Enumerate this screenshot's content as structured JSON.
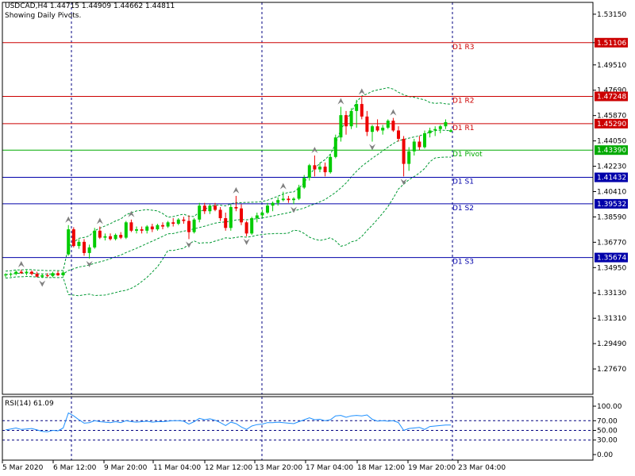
{
  "header": {
    "symbol_line": "USDCAD,H4  1.44715 1.44909 1.44662 1.44811",
    "subtitle": "Showing Daily Pivots."
  },
  "rsi_label": "RSI(14) 61.09",
  "colors": {
    "bull": "#00cc00",
    "bear": "#ee0000",
    "resistance": "#cc0000",
    "support": "#0000aa",
    "pivot": "#00aa00",
    "band": "#009933",
    "rsi_line": "#1e90ff",
    "fractal": "#808080",
    "frame": "#000000"
  },
  "chart_data": [
    {
      "type": "candlestick",
      "title": "USDCAD,H4  1.44715 1.44909 1.44662 1.44811",
      "ylim": [
        1.2585,
        1.54
      ],
      "y_ticks": [
        1.5315,
        1.51106,
        1.4951,
        1.4769,
        1.4587,
        1.4405,
        1.4223,
        1.4041,
        1.3859,
        1.3677,
        1.3495,
        1.3313,
        1.3131,
        1.2949,
        1.2767
      ],
      "x_tick_labels": [
        "5 Mar 2020",
        "6 Mar 12:00",
        "9 Mar 20:00",
        "11 Mar 04:00",
        "12 Mar 12:00",
        "13 Mar 20:00",
        "17 Mar 04:00",
        "18 Mar 12:00",
        "19 Mar 20:00",
        "23 Mar 04:00"
      ],
      "pivots": [
        {
          "name": "D1 R3",
          "value": 1.51106,
          "label": "1.51106",
          "kind": "resistance"
        },
        {
          "name": "D1 R2",
          "value": 1.47248,
          "label": "1.47248",
          "kind": "resistance"
        },
        {
          "name": "D1 R1",
          "value": 1.4529,
          "label": "1.45290",
          "kind": "resistance"
        },
        {
          "name": "D1 Pivot",
          "value": 1.4339,
          "label": "1.43390",
          "kind": "pivot"
        },
        {
          "name": "D1 S1",
          "value": 1.41432,
          "label": "1.41432",
          "kind": "support"
        },
        {
          "name": "D1 S2",
          "value": 1.39532,
          "label": "1.39532",
          "kind": "support"
        },
        {
          "name": "D1 S3",
          "value": 1.35674,
          "label": "1.35674",
          "kind": "support"
        }
      ],
      "candles": [
        [
          1.344,
          1.3455,
          1.3425,
          1.3445
        ],
        [
          1.3445,
          1.346,
          1.343,
          1.345
        ],
        [
          1.345,
          1.3475,
          1.344,
          1.3465
        ],
        [
          1.3465,
          1.348,
          1.345,
          1.3455
        ],
        [
          1.3455,
          1.3475,
          1.344,
          1.3465
        ],
        [
          1.3465,
          1.3475,
          1.344,
          1.345
        ],
        [
          1.345,
          1.3465,
          1.3425,
          1.343
        ],
        [
          1.343,
          1.345,
          1.342,
          1.344
        ],
        [
          1.344,
          1.3455,
          1.3425,
          1.3435
        ],
        [
          1.3435,
          1.3465,
          1.3425,
          1.3455
        ],
        [
          1.3455,
          1.347,
          1.3435,
          1.344
        ],
        [
          1.344,
          1.347,
          1.343,
          1.346
        ],
        [
          1.359,
          1.38,
          1.358,
          1.377
        ],
        [
          1.377,
          1.3785,
          1.364,
          1.365
        ],
        [
          1.365,
          1.37,
          1.363,
          1.368
        ],
        [
          1.368,
          1.37,
          1.358,
          1.36
        ],
        [
          1.36,
          1.366,
          1.356,
          1.364
        ],
        [
          1.364,
          1.378,
          1.363,
          1.376
        ],
        [
          1.376,
          1.379,
          1.37,
          1.371
        ],
        [
          1.371,
          1.374,
          1.369,
          1.372
        ],
        [
          1.372,
          1.374,
          1.369,
          1.37
        ],
        [
          1.37,
          1.374,
          1.369,
          1.373
        ],
        [
          1.373,
          1.375,
          1.37,
          1.371
        ],
        [
          1.371,
          1.383,
          1.37,
          1.382
        ],
        [
          1.382,
          1.384,
          1.375,
          1.376
        ],
        [
          1.376,
          1.379,
          1.374,
          1.377
        ],
        [
          1.377,
          1.379,
          1.374,
          1.376
        ],
        [
          1.376,
          1.38,
          1.374,
          1.379
        ],
        [
          1.379,
          1.381,
          1.375,
          1.377
        ],
        [
          1.377,
          1.381,
          1.376,
          1.38
        ],
        [
          1.38,
          1.382,
          1.377,
          1.379
        ],
        [
          1.379,
          1.383,
          1.378,
          1.382
        ],
        [
          1.382,
          1.385,
          1.379,
          1.381
        ],
        [
          1.381,
          1.385,
          1.38,
          1.384
        ],
        [
          1.384,
          1.386,
          1.381,
          1.383
        ],
        [
          1.383,
          1.387,
          1.37,
          1.375
        ],
        [
          1.375,
          1.385,
          1.374,
          1.384
        ],
        [
          1.384,
          1.396,
          1.382,
          1.394
        ],
        [
          1.394,
          1.396,
          1.388,
          1.39
        ],
        [
          1.39,
          1.395,
          1.388,
          1.394
        ],
        [
          1.394,
          1.396,
          1.39,
          1.391
        ],
        [
          1.391,
          1.393,
          1.383,
          1.385
        ],
        [
          1.385,
          1.389,
          1.376,
          1.378
        ],
        [
          1.378,
          1.395,
          1.376,
          1.393
        ],
        [
          1.393,
          1.401,
          1.39,
          1.392
        ],
        [
          1.392,
          1.395,
          1.38,
          1.382
        ],
        [
          1.382,
          1.383,
          1.372,
          1.374
        ],
        [
          1.374,
          1.386,
          1.373,
          1.385
        ],
        [
          1.385,
          1.389,
          1.382,
          1.387
        ],
        [
          1.387,
          1.391,
          1.385,
          1.389
        ],
        [
          1.389,
          1.396,
          1.388,
          1.394
        ],
        [
          1.394,
          1.397,
          1.39,
          1.396
        ],
        [
          1.396,
          1.4,
          1.394,
          1.398
        ],
        [
          1.398,
          1.404,
          1.397,
          1.399
        ],
        [
          1.399,
          1.401,
          1.396,
          1.398
        ],
        [
          1.398,
          1.4,
          1.395,
          1.399
        ],
        [
          1.399,
          1.409,
          1.398,
          1.407
        ],
        [
          1.407,
          1.416,
          1.406,
          1.414
        ],
        [
          1.414,
          1.424,
          1.412,
          1.423
        ],
        [
          1.423,
          1.43,
          1.415,
          1.42
        ],
        [
          1.42,
          1.425,
          1.418,
          1.422
        ],
        [
          1.422,
          1.425,
          1.415,
          1.418
        ],
        [
          1.418,
          1.431,
          1.417,
          1.429
        ],
        [
          1.429,
          1.445,
          1.428,
          1.443
        ],
        [
          1.443,
          1.465,
          1.44,
          1.459
        ],
        [
          1.459,
          1.462,
          1.445,
          1.451
        ],
        [
          1.451,
          1.464,
          1.449,
          1.462
        ],
        [
          1.462,
          1.47,
          1.45,
          1.467
        ],
        [
          1.467,
          1.472,
          1.456,
          1.458
        ],
        [
          1.458,
          1.462,
          1.444,
          1.447
        ],
        [
          1.447,
          1.452,
          1.44,
          1.451
        ],
        [
          1.451,
          1.456,
          1.447,
          1.448
        ],
        [
          1.448,
          1.452,
          1.445,
          1.45
        ],
        [
          1.45,
          1.456,
          1.449,
          1.455
        ],
        [
          1.455,
          1.457,
          1.447,
          1.448
        ],
        [
          1.448,
          1.451,
          1.44,
          1.442
        ],
        [
          1.442,
          1.444,
          1.415,
          1.424
        ],
        [
          1.424,
          1.436,
          1.419,
          1.433
        ],
        [
          1.433,
          1.442,
          1.43,
          1.44
        ],
        [
          1.44,
          1.444,
          1.434,
          1.436
        ],
        [
          1.436,
          1.448,
          1.435,
          1.446
        ],
        [
          1.446,
          1.45,
          1.443,
          1.448
        ],
        [
          1.448,
          1.451,
          1.444,
          1.449
        ],
        [
          1.449,
          1.452,
          1.446,
          1.451
        ],
        [
          1.451,
          1.456,
          1.449,
          1.454
        ],
        [
          1.44715,
          1.44909,
          1.44662,
          1.44811
        ]
      ]
    },
    {
      "type": "line",
      "title": "RSI(14) 61.09",
      "ylim": [
        0,
        100
      ],
      "y_ticks": [
        100.0,
        70.0,
        50.0,
        30.0,
        0.0
      ],
      "levels": [
        70,
        50,
        30
      ],
      "values": [
        51,
        53,
        55,
        52,
        53,
        54,
        51,
        48,
        47,
        50,
        49,
        55,
        86,
        80,
        72,
        65,
        66,
        70,
        68,
        67,
        66,
        68,
        66,
        70,
        68,
        67,
        68,
        69,
        67,
        68,
        68,
        69,
        70,
        70,
        69,
        63,
        68,
        75,
        72,
        74,
        71,
        66,
        60,
        67,
        64,
        57,
        52,
        59,
        62,
        63,
        66,
        66,
        67,
        66,
        65,
        64,
        68,
        72,
        76,
        72,
        73,
        70,
        72,
        80,
        81,
        77,
        80,
        81,
        80,
        82,
        73,
        69,
        70,
        69,
        70,
        66,
        50,
        54,
        55,
        56,
        52,
        58,
        59,
        60,
        61,
        61.09
      ]
    }
  ]
}
